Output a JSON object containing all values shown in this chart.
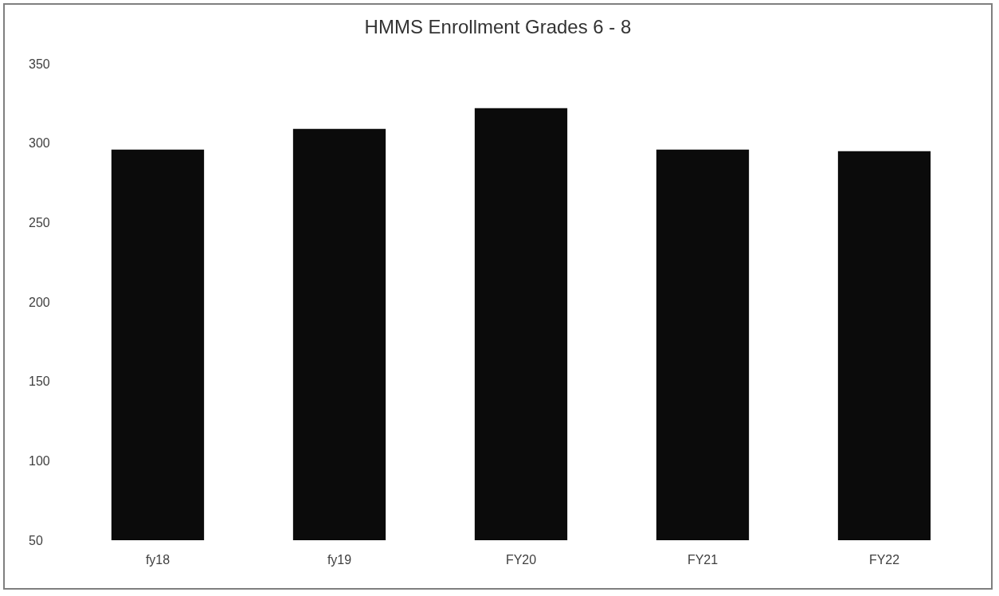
{
  "chart_data": {
    "type": "bar",
    "title": "HMMS Enrollment Grades 6 - 8",
    "categories": [
      "fy18",
      "fy19",
      "FY20",
      "FY21",
      "FY22"
    ],
    "values": [
      296,
      309,
      322,
      296,
      295
    ],
    "color": "#0b0b0b",
    "ylim": [
      50,
      350
    ],
    "yticks": [
      50,
      100,
      150,
      200,
      250,
      300,
      350
    ],
    "grid": false
  }
}
